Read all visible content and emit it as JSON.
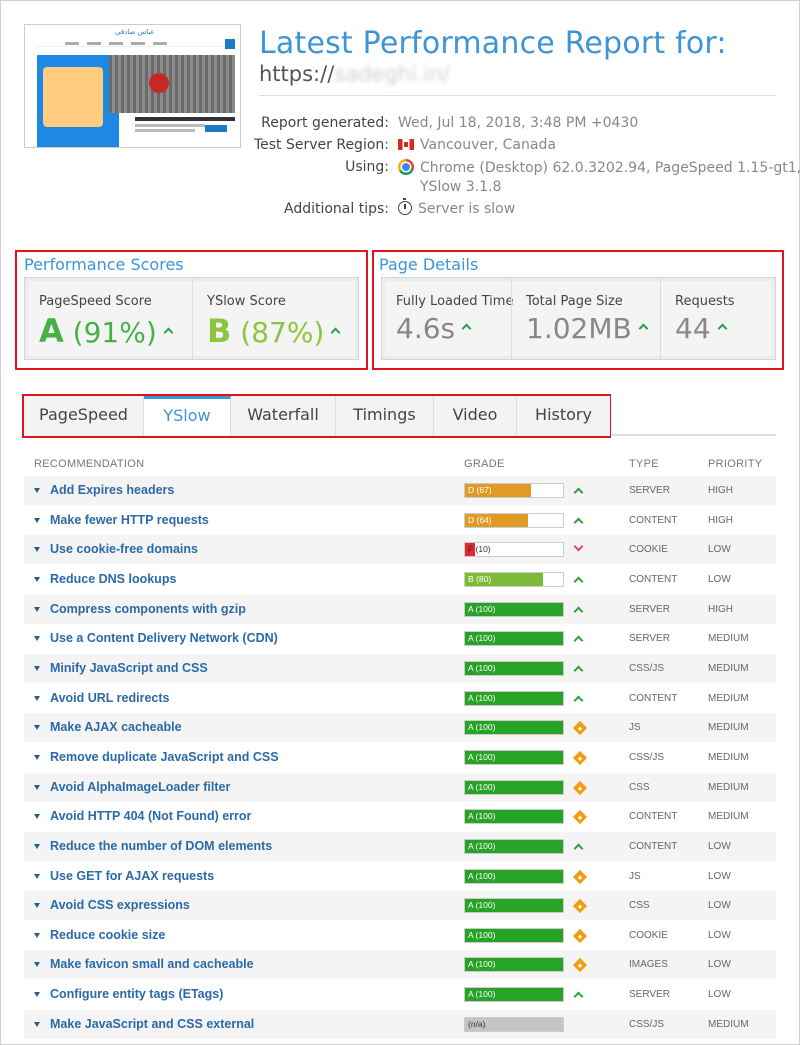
{
  "header": {
    "title": "Latest Performance Report for:",
    "url_prefix": "https://",
    "url_masked": "sadeghi.in/"
  },
  "thumbnail": {
    "site_name": "عباس صادقی"
  },
  "meta": [
    {
      "label": "Report generated:",
      "value": "Wed, Jul 18, 2018, 3:48 PM +0430",
      "icon": ""
    },
    {
      "label": "Test Server Region:",
      "value": "Vancouver, Canada",
      "icon": "canada-flag-icon"
    },
    {
      "label": "Using:",
      "value": "Chrome (Desktop) 62.0.3202.94, PageSpeed 1.15-gt1,",
      "value2": "YSlow 3.1.8",
      "icon": "chrome-icon"
    },
    {
      "label": "Additional tips:",
      "value": "Server is slow",
      "icon": "stopwatch-icon"
    }
  ],
  "performance": {
    "title": "Performance Scores",
    "pagespeed": {
      "label": "PageSpeed Score",
      "grade": "A",
      "score": "(91%)"
    },
    "yslow": {
      "label": "YSlow Score",
      "grade": "B",
      "score": "(87%)"
    }
  },
  "details": {
    "title": "Page Details",
    "load_time": {
      "label": "Fully Loaded Time",
      "value": "4.6s"
    },
    "page_size": {
      "label": "Total Page Size",
      "value": "1.02MB"
    },
    "requests": {
      "label": "Requests",
      "value": "44"
    }
  },
  "tabs": [
    "PageSpeed",
    "YSlow",
    "Waterfall",
    "Timings",
    "Video",
    "History"
  ],
  "active_tab": "YSlow",
  "table": {
    "headers": {
      "recommendation": "RECOMMENDATION",
      "grade": "GRADE",
      "type": "TYPE",
      "priority": "PRIORITY"
    },
    "rows": [
      {
        "rec": "Add Expires headers",
        "grade": "D (67)",
        "score": 67,
        "color": "#e09b26",
        "trend": "up",
        "type": "SERVER",
        "priority": "HIGH"
      },
      {
        "rec": "Make fewer HTTP requests",
        "grade": "D (64)",
        "score": 64,
        "color": "#e09b26",
        "trend": "up",
        "type": "CONTENT",
        "priority": "HIGH"
      },
      {
        "rec": "Use cookie-free domains",
        "grade": "F (10)",
        "score": 10,
        "color": "#e0282e",
        "trend": "down",
        "type": "COOKIE",
        "priority": "LOW"
      },
      {
        "rec": "Reduce DNS lookups",
        "grade": "B (80)",
        "score": 80,
        "color": "#7dbb36",
        "trend": "up",
        "type": "CONTENT",
        "priority": "LOW"
      },
      {
        "rec": "Compress components with gzip",
        "grade": "A (100)",
        "score": 100,
        "color": "#27a327",
        "trend": "up",
        "type": "SERVER",
        "priority": "HIGH"
      },
      {
        "rec": "Use a Content Delivery Network (CDN)",
        "grade": "A (100)",
        "score": 100,
        "color": "#27a327",
        "trend": "up",
        "type": "SERVER",
        "priority": "MEDIUM"
      },
      {
        "rec": "Minify JavaScript and CSS",
        "grade": "A (100)",
        "score": 100,
        "color": "#27a327",
        "trend": "up",
        "type": "CSS/JS",
        "priority": "MEDIUM"
      },
      {
        "rec": "Avoid URL redirects",
        "grade": "A (100)",
        "score": 100,
        "color": "#27a327",
        "trend": "up",
        "type": "CONTENT",
        "priority": "MEDIUM"
      },
      {
        "rec": "Make AJAX cacheable",
        "grade": "A (100)",
        "score": 100,
        "color": "#27a327",
        "trend": "same",
        "type": "JS",
        "priority": "MEDIUM"
      },
      {
        "rec": "Remove duplicate JavaScript and CSS",
        "grade": "A (100)",
        "score": 100,
        "color": "#27a327",
        "trend": "same",
        "type": "CSS/JS",
        "priority": "MEDIUM"
      },
      {
        "rec": "Avoid AlphaImageLoader filter",
        "grade": "A (100)",
        "score": 100,
        "color": "#27a327",
        "trend": "same",
        "type": "CSS",
        "priority": "MEDIUM"
      },
      {
        "rec": "Avoid HTTP 404 (Not Found) error",
        "grade": "A (100)",
        "score": 100,
        "color": "#27a327",
        "trend": "same",
        "type": "CONTENT",
        "priority": "MEDIUM"
      },
      {
        "rec": "Reduce the number of DOM elements",
        "grade": "A (100)",
        "score": 100,
        "color": "#27a327",
        "trend": "up",
        "type": "CONTENT",
        "priority": "LOW"
      },
      {
        "rec": "Use GET for AJAX requests",
        "grade": "A (100)",
        "score": 100,
        "color": "#27a327",
        "trend": "same",
        "type": "JS",
        "priority": "LOW"
      },
      {
        "rec": "Avoid CSS expressions",
        "grade": "A (100)",
        "score": 100,
        "color": "#27a327",
        "trend": "same",
        "type": "CSS",
        "priority": "LOW"
      },
      {
        "rec": "Reduce cookie size",
        "grade": "A (100)",
        "score": 100,
        "color": "#27a327",
        "trend": "same",
        "type": "COOKIE",
        "priority": "LOW"
      },
      {
        "rec": "Make favicon small and cacheable",
        "grade": "A (100)",
        "score": 100,
        "color": "#27a327",
        "trend": "same",
        "type": "IMAGES",
        "priority": "LOW"
      },
      {
        "rec": "Configure entity tags (ETags)",
        "grade": "A (100)",
        "score": 100,
        "color": "#27a327",
        "trend": "up",
        "type": "SERVER",
        "priority": "LOW"
      },
      {
        "rec": "Make JavaScript and CSS external",
        "grade": "(n/a)",
        "score": 100,
        "color": "#c4c4c4",
        "trend": "none",
        "type": "CSS/JS",
        "priority": "MEDIUM"
      }
    ]
  }
}
